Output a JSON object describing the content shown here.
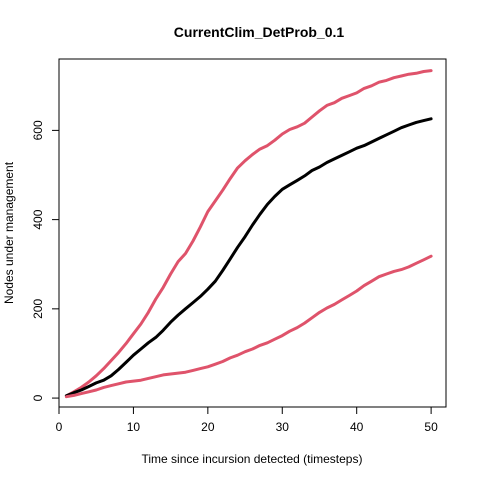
{
  "chart_data": {
    "type": "line",
    "title": "CurrentClim_DetProb_0.1",
    "xlabel": "Time since incursion detected (timesteps)",
    "ylabel": "Nodes under management",
    "xlim": [
      0,
      52
    ],
    "ylim": [
      -20,
      760
    ],
    "xticks": [
      0,
      10,
      20,
      30,
      40,
      50
    ],
    "yticks": [
      0,
      200,
      400,
      600
    ],
    "grid": false,
    "colors": {
      "mean": "#000000",
      "bounds": "#DF536B"
    },
    "x": [
      1,
      2,
      3,
      4,
      5,
      6,
      7,
      8,
      9,
      10,
      11,
      12,
      13,
      14,
      15,
      16,
      17,
      18,
      19,
      20,
      21,
      22,
      23,
      24,
      25,
      26,
      27,
      28,
      29,
      30,
      31,
      32,
      33,
      34,
      35,
      36,
      37,
      38,
      39,
      40,
      41,
      42,
      43,
      44,
      45,
      46,
      47,
      48,
      49,
      50
    ],
    "series": [
      {
        "key": "upper",
        "color": "#DF536B",
        "values": [
          5,
          14,
          24,
          36,
          50,
          66,
          84,
          102,
          122,
          144,
          166,
          192,
          222,
          248,
          278,
          306,
          324,
          352,
          384,
          418,
          442,
          466,
          492,
          516,
          532,
          546,
          558,
          566,
          578,
          592,
          602,
          608,
          616,
          630,
          644,
          656,
          662,
          672,
          678,
          684,
          694,
          700,
          708,
          712,
          718,
          722,
          726,
          728,
          732,
          734
        ]
      },
      {
        "key": "mean",
        "color": "#000000",
        "values": [
          5,
          12,
          18,
          26,
          34,
          40,
          50,
          64,
          80,
          96,
          110,
          124,
          136,
          152,
          170,
          186,
          200,
          214,
          228,
          244,
          262,
          286,
          312,
          338,
          362,
          388,
          412,
          434,
          452,
          468,
          478,
          488,
          498,
          510,
          518,
          528,
          536,
          544,
          552,
          560,
          566,
          574,
          582,
          590,
          598,
          606,
          612,
          618,
          622,
          626
        ]
      },
      {
        "key": "lower",
        "color": "#DF536B",
        "values": [
          3,
          6,
          10,
          14,
          18,
          24,
          28,
          32,
          36,
          38,
          40,
          44,
          48,
          52,
          54,
          56,
          58,
          62,
          66,
          70,
          76,
          82,
          90,
          96,
          104,
          110,
          118,
          124,
          132,
          140,
          150,
          158,
          168,
          180,
          192,
          202,
          210,
          220,
          230,
          240,
          252,
          262,
          272,
          278,
          284,
          288,
          294,
          302,
          310,
          318
        ]
      }
    ]
  }
}
